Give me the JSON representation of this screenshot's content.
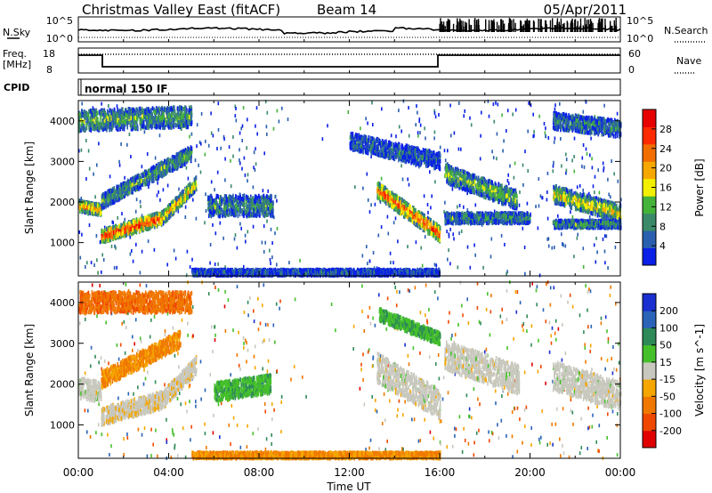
{
  "header": {
    "station": "Christmas Valley East (fitACF)",
    "beam": "Beam 14",
    "date": "05/Apr/2011"
  },
  "param_panels": {
    "nsky_label": "N.Sky",
    "nsky_top": "10^5",
    "nsky_bottom": "10^0",
    "nsearch_label": "N.Search",
    "freq_label": "Freq.",
    "freq_unit": "[MHz]",
    "freq_top": "18",
    "freq_bottom": "8",
    "nave_label": "Nave",
    "nave_top": "60",
    "nave_bottom": "0",
    "cpid_label": "CPID",
    "cpid_value": "normal 150 IF"
  },
  "colors": {
    "power": [
      "#0a20e6",
      "#2a5fb0",
      "#3a8a6a",
      "#45b23a",
      "#f2f000",
      "#f7a800",
      "#f26e00",
      "#ff2a00",
      "#e60000"
    ],
    "velocity": [
      "#1a2fd0",
      "#2a63b8",
      "#2e8a58",
      "#45c02a",
      "#c8c8be",
      "#f5a600",
      "#f07800",
      "#f04800",
      "#e00000"
    ]
  },
  "chart_data": [
    {
      "type": "heatmap",
      "title": "Power",
      "xlabel": "Time UT",
      "ylabel": "Slant Range [km]",
      "x_ticks": [
        "00:00",
        "04:00",
        "08:00",
        "12:00",
        "16:00",
        "20:00",
        "00:00"
      ],
      "y_ticks": [
        1000,
        2000,
        3000,
        4000
      ],
      "ylim": [
        180,
        4500
      ],
      "x_hours": [
        0,
        24
      ],
      "colorbar": {
        "label": "Power [dB]",
        "ticks": [
          4,
          8,
          12,
          16,
          20,
          24,
          28
        ],
        "range": [
          0,
          32
        ]
      },
      "features": [
        {
          "start": 0.0,
          "end": 1.0,
          "r_start": 1900,
          "r_end": 1800,
          "width": 260,
          "value": 0.7
        },
        {
          "start": 1.0,
          "end": 3.7,
          "r_start": 1150,
          "r_end": 1600,
          "width": 320,
          "value": 0.85
        },
        {
          "start": 3.7,
          "end": 5.2,
          "r_start": 1600,
          "r_end": 2450,
          "width": 320,
          "value": 0.6
        },
        {
          "start": 1.0,
          "end": 5.0,
          "r_start": 2000,
          "r_end": 3200,
          "width": 350,
          "value": 0.35
        },
        {
          "start": 5.7,
          "end": 8.6,
          "r_start": 1900,
          "r_end": 1900,
          "width": 500,
          "value": 0.3
        },
        {
          "start": 13.2,
          "end": 16.0,
          "r_start": 2300,
          "r_end": 1200,
          "width": 380,
          "value": 0.82
        },
        {
          "start": 16.2,
          "end": 19.4,
          "r_start": 2700,
          "r_end": 2050,
          "width": 450,
          "value": 0.4
        },
        {
          "start": 16.2,
          "end": 20.0,
          "r_start": 1600,
          "r_end": 1600,
          "width": 250,
          "value": 0.3
        },
        {
          "start": 21.0,
          "end": 24.0,
          "r_start": 2200,
          "r_end": 1700,
          "width": 420,
          "value": 0.55
        },
        {
          "start": 21.0,
          "end": 24.0,
          "r_start": 1450,
          "r_end": 1450,
          "width": 180,
          "value": 0.3
        },
        {
          "start": 5.0,
          "end": 16.0,
          "r_start": 260,
          "r_end": 260,
          "width": 140,
          "value": 0.15
        },
        {
          "start": 12.0,
          "end": 16.0,
          "r_start": 3500,
          "r_end": 3000,
          "width": 400,
          "value": 0.2
        },
        {
          "start": 0.0,
          "end": 5.0,
          "r_start": 4000,
          "r_end": 4100,
          "width": 500,
          "value": 0.35
        },
        {
          "start": 21.0,
          "end": 24.0,
          "r_start": 4000,
          "r_end": 3800,
          "width": 400,
          "value": 0.25
        }
      ]
    },
    {
      "type": "heatmap",
      "title": "Velocity",
      "xlabel": "Time UT",
      "ylabel": "Slant Range [km]",
      "x_ticks": [
        "00:00",
        "04:00",
        "08:00",
        "12:00",
        "16:00",
        "20:00",
        "00:00"
      ],
      "y_ticks": [
        1000,
        2000,
        3000,
        4000
      ],
      "ylim": [
        180,
        4500
      ],
      "x_hours": [
        0,
        24
      ],
      "colorbar": {
        "label": "Velocity [m s^-1]",
        "ticks": [
          200,
          100,
          50,
          15,
          -15,
          -50,
          -100,
          -200
        ],
        "range": [
          -250,
          250
        ]
      },
      "features": [
        {
          "start": 0.0,
          "end": 1.0,
          "r_start": 1900,
          "r_end": 1800,
          "width": 500,
          "value": 0.0
        },
        {
          "start": 1.0,
          "end": 3.7,
          "r_start": 1200,
          "r_end": 1600,
          "width": 420,
          "value": -0.05
        },
        {
          "start": 3.7,
          "end": 5.2,
          "r_start": 1600,
          "r_end": 2450,
          "width": 420,
          "value": -0.02
        },
        {
          "start": 1.0,
          "end": 4.5,
          "r_start": 2100,
          "r_end": 3100,
          "width": 400,
          "value": -0.35
        },
        {
          "start": 6.0,
          "end": 8.5,
          "r_start": 1800,
          "r_end": 2000,
          "width": 450,
          "value": 0.3
        },
        {
          "start": 13.2,
          "end": 16.0,
          "r_start": 2400,
          "r_end": 1500,
          "width": 700,
          "value": 0.0
        },
        {
          "start": 13.3,
          "end": 16.0,
          "r_start": 3700,
          "r_end": 3100,
          "width": 300,
          "value": 0.3
        },
        {
          "start": 16.2,
          "end": 19.5,
          "r_start": 2700,
          "r_end": 2100,
          "width": 700,
          "value": 0.0
        },
        {
          "start": 21.0,
          "end": 24.0,
          "r_start": 2200,
          "r_end": 1700,
          "width": 700,
          "value": 0.0
        },
        {
          "start": 5.0,
          "end": 16.0,
          "r_start": 240,
          "r_end": 240,
          "width": 160,
          "value": -0.35
        },
        {
          "start": 0.0,
          "end": 5.0,
          "r_start": 4000,
          "r_end": 4000,
          "width": 500,
          "value": -0.5
        }
      ]
    }
  ]
}
